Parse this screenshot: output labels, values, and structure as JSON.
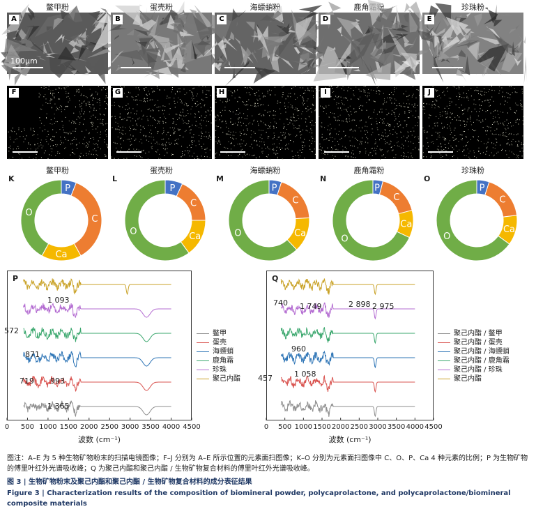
{
  "columns": [
    {
      "title": "鳖甲粉",
      "sem_letter": "A",
      "edx_letter": "F",
      "pie_letter": "K",
      "pie_title": "鳖甲粉",
      "pie": [
        {
          "element": "P",
          "value": 6
        },
        {
          "element": "C",
          "value": 36
        },
        {
          "element": "Ca",
          "value": 16
        },
        {
          "element": "O",
          "value": 42
        }
      ]
    },
    {
      "title": "蛋壳粉",
      "sem_letter": "B",
      "edx_letter": "G",
      "pie_letter": "L",
      "pie_title": "蛋壳粉",
      "pie": [
        {
          "element": "P",
          "value": 7
        },
        {
          "element": "C",
          "value": 18
        },
        {
          "element": "Ca",
          "value": 15
        },
        {
          "element": "O",
          "value": 60
        }
      ]
    },
    {
      "title": "海螵蛸粉",
      "sem_letter": "C",
      "edx_letter": "H",
      "pie_letter": "M",
      "pie_title": "海螵蛸粉",
      "pie": [
        {
          "element": "P",
          "value": 5
        },
        {
          "element": "C",
          "value": 19
        },
        {
          "element": "Ca",
          "value": 14
        },
        {
          "element": "O",
          "value": 62
        }
      ]
    },
    {
      "title": "鹿角霜粉",
      "sem_letter": "D",
      "edx_letter": "I",
      "pie_letter": "N",
      "pie_title": "鹿角霜粉",
      "pie": [
        {
          "element": "P",
          "value": 4
        },
        {
          "element": "C",
          "value": 17
        },
        {
          "element": "Ca",
          "value": 11
        },
        {
          "element": "O",
          "value": 68
        }
      ]
    },
    {
      "title": "珍珠粉",
      "sem_letter": "E",
      "edx_letter": "J",
      "pie_letter": "O",
      "pie_title": "珍珠粉",
      "pie": [
        {
          "element": "P",
          "value": 5
        },
        {
          "element": "C",
          "value": 18
        },
        {
          "element": "Ca",
          "value": 12
        },
        {
          "element": "O",
          "value": 65
        }
      ]
    }
  ],
  "sem_scale_text": "100μm",
  "pie_colors": {
    "P": "#4472c4",
    "C": "#ed7d31",
    "Ca": "#f5b800",
    "O": "#70ad47"
  },
  "chart_data": [
    {
      "type": "line",
      "panel": "P",
      "xlabel": "波数 (cm⁻¹)",
      "xlim": [
        0,
        4500
      ],
      "xticks": [
        0,
        500,
        1000,
        1500,
        2000,
        2500,
        3000,
        3500,
        4000,
        4500
      ],
      "series": [
        {
          "name": "鳖甲",
          "color": "#8e8e8e"
        },
        {
          "name": "蛋壳",
          "color": "#d9534f"
        },
        {
          "name": "海螵蛸",
          "color": "#2e75b6"
        },
        {
          "name": "鹿角霜",
          "color": "#3aa76d"
        },
        {
          "name": "珍珠",
          "color": "#b36bd1"
        },
        {
          "name": "聚己内酯",
          "color": "#c9a227"
        }
      ],
      "annotations": [
        "1 093",
        "572",
        "871",
        "719",
        "993",
        "1 365"
      ]
    },
    {
      "type": "line",
      "panel": "Q",
      "xlabel": "波数 (cm⁻¹)",
      "xlim": [
        0,
        4500
      ],
      "xticks": [
        0,
        500,
        1000,
        1500,
        2000,
        2500,
        3000,
        3500,
        4000,
        4500
      ],
      "series": [
        {
          "name": "聚己内酯 / 鳖甲",
          "color": "#8e8e8e"
        },
        {
          "name": "聚己内酯 / 蛋壳",
          "color": "#d9534f"
        },
        {
          "name": "聚己内酯 / 海螵蛸",
          "color": "#2e75b6"
        },
        {
          "name": "聚己内酯 / 鹿角霜",
          "color": "#3aa76d"
        },
        {
          "name": "聚己内酯 / 珍珠",
          "color": "#b36bd1"
        },
        {
          "name": "聚己内酯",
          "color": "#c9a227"
        }
      ],
      "annotations": [
        "740",
        "1 749",
        "2 898",
        "2 975",
        "960",
        "1 058",
        "457"
      ]
    }
  ],
  "caption": {
    "note": "图注：A–E 为 5 种生物矿物粉末的扫描电镜图像；F–J 分别为 A–E 所示位置的元素面扫图像；K–O 分别为元素面扫图像中 C、O、P、Ca 4 种元素的比例；P 为生物矿物的傅里叶红外光谱吸收峰；Q 为聚己内酯和聚己内酯 / 生物矿物复合材料的傅里叶红外光谱吸收峰。",
    "title_cn": "图 3 | 生物矿物粉末及聚己内酯和聚己内酯 / 生物矿物复合材料的成分表征结果",
    "title_en": "Figure 3 | Characterization results of the composition of biomineral powder, polycaprolactone, and polycaprolactone/biomineral composite materials"
  }
}
